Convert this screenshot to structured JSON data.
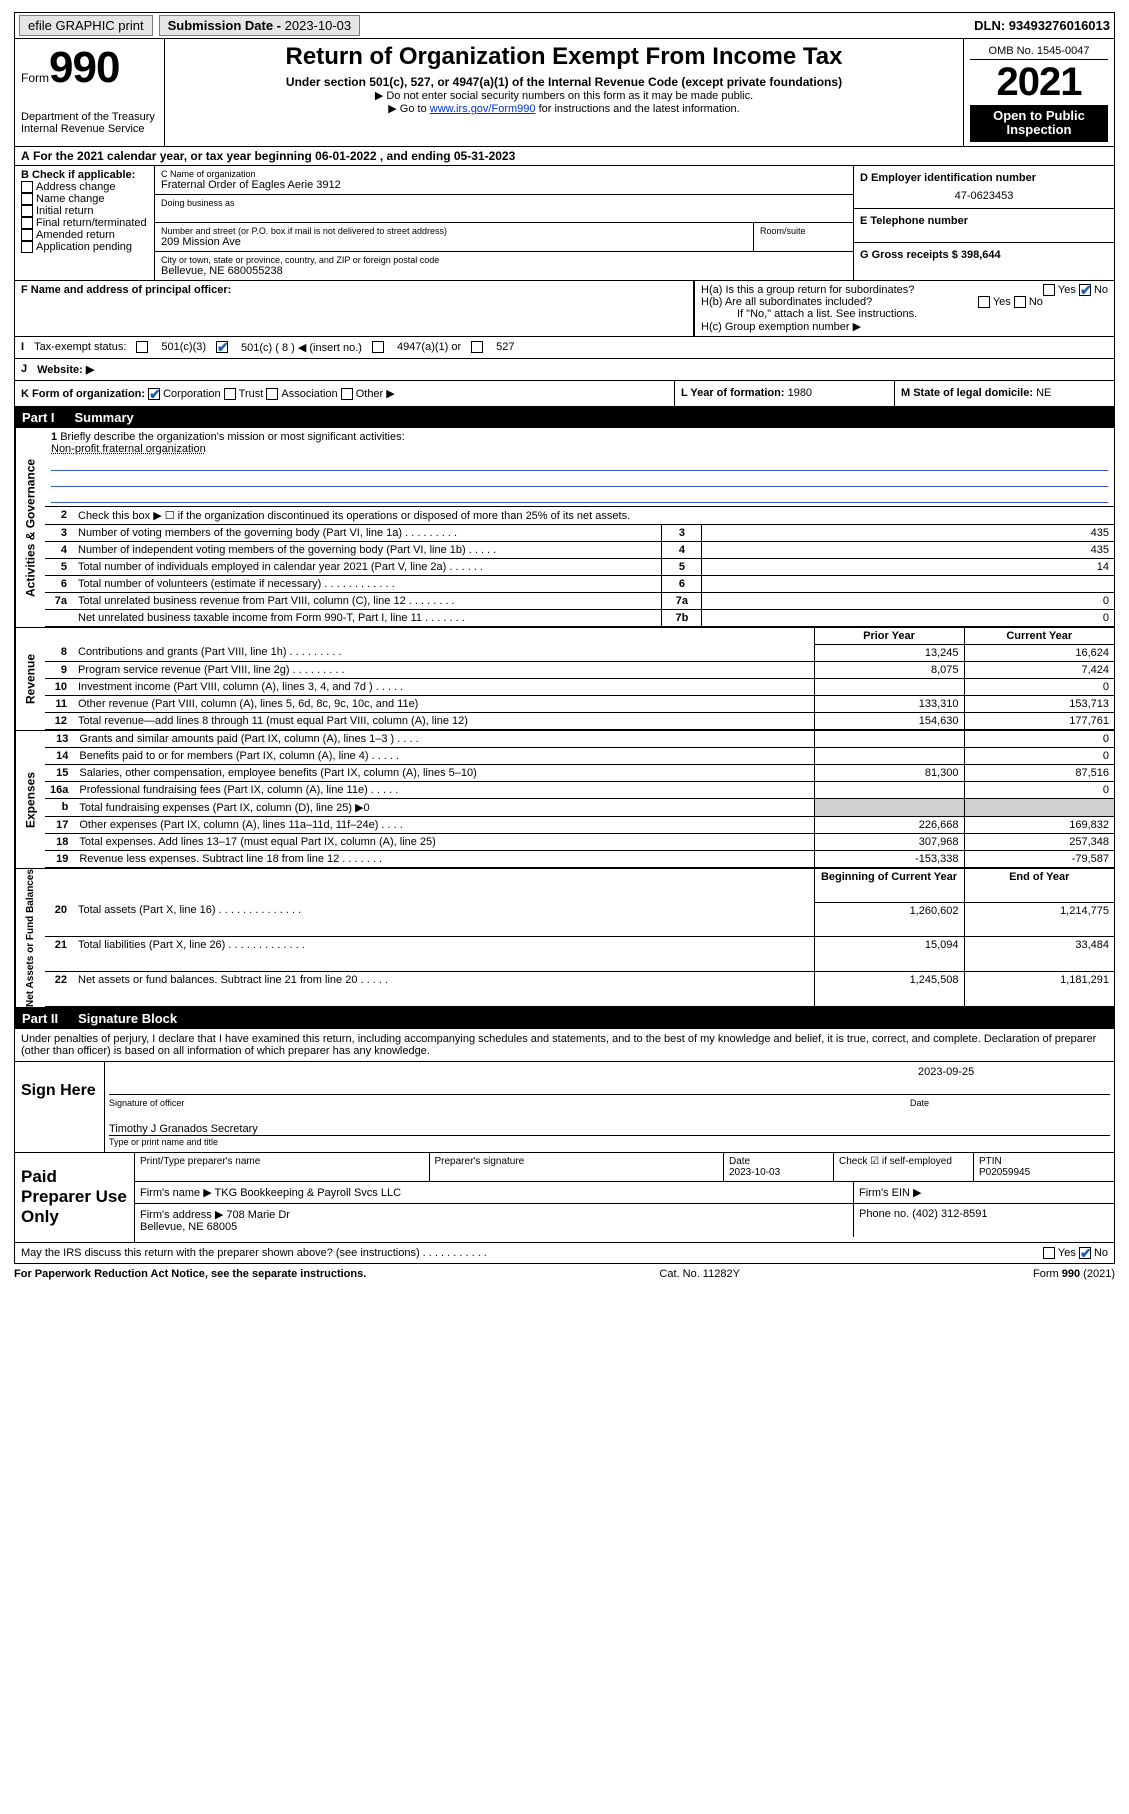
{
  "topbar": {
    "efile": "efile GRAPHIC print",
    "sub_label": "Submission Date -",
    "sub_date": "2023-10-03",
    "dln": "DLN: 93493276016013"
  },
  "header": {
    "form_prefix": "Form",
    "form_number": "990",
    "dept": "Department of the Treasury\nInternal Revenue Service",
    "title": "Return of Organization Exempt From Income Tax",
    "subtitle": "Under section 501(c), 527, or 4947(a)(1) of the Internal Revenue Code (except private foundations)",
    "note1": "Do not enter social security numbers on this form as it may be made public.",
    "note2": "Go to ",
    "note2_link": "www.irs.gov/Form990",
    "note2_after": " for instructions and the latest information.",
    "omb": "OMB No. 1545-0047",
    "year": "2021",
    "inspect": "Open to Public Inspection"
  },
  "A": {
    "text": "For the 2021 calendar year, or tax year beginning ",
    "begin": "06-01-2022",
    "mid": " , and ending ",
    "end": "05-31-2023"
  },
  "B": {
    "label": "B Check if applicable:",
    "opts": [
      "Address change",
      "Name change",
      "Initial return",
      "Final return/terminated",
      "Amended return",
      "Application pending"
    ]
  },
  "C": {
    "name_label": "C Name of organization",
    "name": "Fraternal Order of Eagles Aerie 3912",
    "dba_label": "Doing business as",
    "addr_label": "Number and street (or P.O. box if mail is not delivered to street address)",
    "addr": "209 Mission Ave",
    "room_label": "Room/suite",
    "city_label": "City or town, state or province, country, and ZIP or foreign postal code",
    "city": "Bellevue, NE  680055238"
  },
  "D": {
    "label": "D Employer identification number",
    "value": "47-0623453"
  },
  "E": {
    "label": "E Telephone number",
    "value": ""
  },
  "G": {
    "label": "G Gross receipts $",
    "value": "398,644"
  },
  "F": {
    "label": "F Name and address of principal officer:"
  },
  "H": {
    "a": "H(a)  Is this a group return for subordinates?",
    "b": "H(b)  Are all subordinates included?",
    "b_note": "If \"No,\" attach a list. See instructions.",
    "c": "H(c)  Group exemption number ▶",
    "yes": "Yes",
    "no": "No"
  },
  "I": {
    "label": "Tax-exempt status:",
    "opts": [
      "501(c)(3)",
      "501(c) ( 8 ) ◀ (insert no.)",
      "4947(a)(1) or",
      "527"
    ]
  },
  "J": {
    "label": "Website: ▶"
  },
  "K": {
    "label": "K Form of organization:",
    "opts": [
      "Corporation",
      "Trust",
      "Association",
      "Other ▶"
    ]
  },
  "L": {
    "label": "L Year of formation:",
    "value": "1980"
  },
  "M": {
    "label": "M State of legal domicile:",
    "value": "NE"
  },
  "part1": {
    "num": "Part I",
    "title": "Summary"
  },
  "briefly": {
    "num": "1",
    "text": "Briefly describe the organization's mission or most significant activities:",
    "mission": "Non-profit fraternal organization"
  },
  "governance": {
    "label": "Activities & Governance",
    "rows": [
      {
        "n": "2",
        "t": "Check this box ▶ ☐  if the organization discontinued its operations or disposed of more than 25% of its net assets."
      },
      {
        "n": "3",
        "t": "Number of voting members of the governing body (Part VI, line 1a)  .  .  .  .  .  .  .  .  .",
        "id": "3",
        "v": "435"
      },
      {
        "n": "4",
        "t": "Number of independent voting members of the governing body (Part VI, line 1b)  .  .  .  .  .",
        "id": "4",
        "v": "435"
      },
      {
        "n": "5",
        "t": "Total number of individuals employed in calendar year 2021 (Part V, line 2a)  .  .  .  .  .  .",
        "id": "5",
        "v": "14"
      },
      {
        "n": "6",
        "t": "Total number of volunteers (estimate if necessary)  .  .  .  .  .  .  .  .  .  .  .  .",
        "id": "6",
        "v": ""
      },
      {
        "n": "7a",
        "t": "Total unrelated business revenue from Part VIII, column (C), line 12  .  .  .  .  .  .  .  .",
        "id": "7a",
        "v": "0"
      },
      {
        "n": "",
        "t": "Net unrelated business taxable income from Form 990-T, Part I, line 11  .  .  .  .  .  .  .",
        "id": "7b",
        "v": "0"
      }
    ]
  },
  "revenue": {
    "label": "Revenue",
    "col1": "Prior Year",
    "col2": "Current Year",
    "rows": [
      {
        "n": "8",
        "t": "Contributions and grants (Part VIII, line 1h)  .  .  .  .  .  .  .  .  .",
        "p": "13,245",
        "c": "16,624"
      },
      {
        "n": "9",
        "t": "Program service revenue (Part VIII, line 2g)  .  .  .  .  .  .  .  .  .",
        "p": "8,075",
        "c": "7,424"
      },
      {
        "n": "10",
        "t": "Investment income (Part VIII, column (A), lines 3, 4, and 7d )  .  .  .  .  .",
        "p": "",
        "c": "0"
      },
      {
        "n": "11",
        "t": "Other revenue (Part VIII, column (A), lines 5, 6d, 8c, 9c, 10c, and 11e)",
        "p": "133,310",
        "c": "153,713"
      },
      {
        "n": "12",
        "t": "Total revenue—add lines 8 through 11 (must equal Part VIII, column (A), line 12)",
        "p": "154,630",
        "c": "177,761"
      }
    ]
  },
  "expenses": {
    "label": "Expenses",
    "rows": [
      {
        "n": "13",
        "t": "Grants and similar amounts paid (Part IX, column (A), lines 1–3 )  .  .  .  .",
        "p": "",
        "c": "0"
      },
      {
        "n": "14",
        "t": "Benefits paid to or for members (Part IX, column (A), line 4)  .  .  .  .  .",
        "p": "",
        "c": "0"
      },
      {
        "n": "15",
        "t": "Salaries, other compensation, employee benefits (Part IX, column (A), lines 5–10)",
        "p": "81,300",
        "c": "87,516"
      },
      {
        "n": "16a",
        "t": "Professional fundraising fees (Part IX, column (A), line 11e)  .  .  .  .  .",
        "p": "",
        "c": "0"
      },
      {
        "n": "b",
        "t": "Total fundraising expenses (Part IX, column (D), line 25) ▶0",
        "p": "—",
        "c": "—",
        "shaded": true
      },
      {
        "n": "17",
        "t": "Other expenses (Part IX, column (A), lines 11a–11d, 11f–24e)  .  .  .  .",
        "p": "226,668",
        "c": "169,832"
      },
      {
        "n": "18",
        "t": "Total expenses. Add lines 13–17 (must equal Part IX, column (A), line 25)",
        "p": "307,968",
        "c": "257,348"
      },
      {
        "n": "19",
        "t": "Revenue less expenses. Subtract line 18 from line 12  .  .  .  .  .  .  .",
        "p": "-153,338",
        "c": "-79,587"
      }
    ]
  },
  "netassets": {
    "label": "Net Assets or Fund Balances",
    "col1": "Beginning of Current Year",
    "col2": "End of Year",
    "rows": [
      {
        "n": "20",
        "t": "Total assets (Part X, line 16)  .  .  .  .  .  .  .  .  .  .  .  .  .  .",
        "p": "1,260,602",
        "c": "1,214,775"
      },
      {
        "n": "21",
        "t": "Total liabilities (Part X, line 26)  .  .  .  .  .  .  .  .  .  .  .  .  .",
        "p": "15,094",
        "c": "33,484"
      },
      {
        "n": "22",
        "t": "Net assets or fund balances. Subtract line 21 from line 20  .  .  .  .  .",
        "p": "1,245,508",
        "c": "1,181,291"
      }
    ]
  },
  "part2": {
    "num": "Part II",
    "title": "Signature Block"
  },
  "declaration": "Under penalties of perjury, I declare that I have examined this return, including accompanying schedules and statements, and to the best of my knowledge and belief, it is true, correct, and complete. Declaration of preparer (other than officer) is based on all information of which preparer has any knowledge.",
  "sign": {
    "here": "Sign Here",
    "sig_officer": "Signature of officer",
    "date_label": "Date",
    "date": "2023-09-25",
    "name": "Timothy J Granados Secretary",
    "name_label": "Type or print name and title"
  },
  "prep": {
    "label": "Paid Preparer Use Only",
    "h": [
      "Print/Type preparer's name",
      "Preparer's signature",
      "Date",
      "Check ☑ if self-employed",
      "PTIN"
    ],
    "date": "2023-10-03",
    "ptin": "P02059945",
    "firm_name_label": "Firm's name    ▶",
    "firm_name": "TKG Bookkeeping & Payroll Svcs LLC",
    "firm_ein_label": "Firm's EIN ▶",
    "firm_addr_label": "Firm's address ▶",
    "firm_addr": "708 Marie Dr\nBellevue, NE  68005",
    "phone_label": "Phone no.",
    "phone": "(402) 312-8591",
    "discuss": "May the IRS discuss this return with the preparer shown above? (see instructions)  .  .  .  .  .  .  .  .  .  .  ."
  },
  "footer": {
    "left": "For Paperwork Reduction Act Notice, see the separate instructions.",
    "mid": "Cat. No. 11282Y",
    "right": "Form 990 (2021)"
  }
}
